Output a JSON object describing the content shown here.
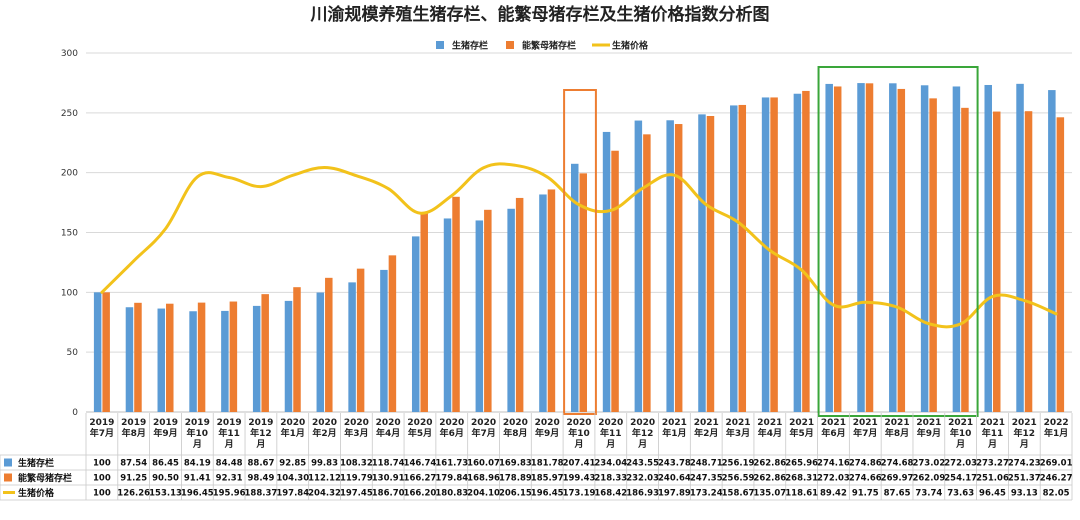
{
  "chart_data": {
    "type": "bar",
    "title": "川渝规模养殖生猪存栏、能繁母猪存栏及生猪价格指数分析图",
    "ylim": [
      0,
      300
    ],
    "yticks": [
      0,
      50,
      100,
      150,
      200,
      250,
      300
    ],
    "grid": true,
    "legend_position": "top",
    "categories": [
      "2019年7月",
      "2019年8月",
      "2019年9月",
      "2019年10月",
      "2019年11月",
      "2019年12月",
      "2020年1月",
      "2020年2月",
      "2020年3月",
      "2020年4月",
      "2020年5月",
      "2020年6月",
      "2020年7月",
      "2020年8月",
      "2020年9月",
      "2020年10月",
      "2020年11月",
      "2020年12月",
      "2021年1月",
      "2021年2月",
      "2021年3月",
      "2021年4月",
      "2021年5月",
      "2021年6月",
      "2021年7月",
      "2021年8月",
      "2021年9月",
      "2021年10月",
      "2021年11月",
      "2021年12月",
      "2022年1月"
    ],
    "series": [
      {
        "name": "生猪存栏",
        "type": "bar",
        "color": "#5b9bd5",
        "values": [
          100,
          87.54,
          86.45,
          84.19,
          84.48,
          88.67,
          92.85,
          99.83,
          108.32,
          118.74,
          146.74,
          161.73,
          160.07,
          169.83,
          181.78,
          207.41,
          234.04,
          243.55,
          243.78,
          248.71,
          256.19,
          262.86,
          265.96,
          274.16,
          274.86,
          274.68,
          273.02,
          272.03,
          273.27,
          274.23,
          269.01
        ]
      },
      {
        "name": "能繁母猪存栏",
        "type": "bar",
        "color": "#ed7d31",
        "values": [
          100,
          91.25,
          90.5,
          91.41,
          92.31,
          98.49,
          104.3,
          112.12,
          119.79,
          130.91,
          166.27,
          179.84,
          168.96,
          178.89,
          185.97,
          199.43,
          218.33,
          232.03,
          240.64,
          247.35,
          256.59,
          262.86,
          268.31,
          272.03,
          274.66,
          269.97,
          262.09,
          254.17,
          251.06,
          251.37,
          246.27
        ]
      },
      {
        "name": "生猪价格",
        "type": "line",
        "color": "#f2c21b",
        "values": [
          100,
          126.26,
          153.13,
          196.45,
          195.96,
          188.37,
          197.84,
          204.32,
          197.45,
          186.7,
          166.2,
          180.83,
          204.1,
          206.15,
          196.45,
          173.19,
          168.42,
          186.93,
          197.89,
          173.24,
          158.67,
          135.07,
          118.61,
          89.42,
          91.75,
          87.65,
          73.74,
          73.63,
          96.45,
          93.13,
          82.05
        ]
      }
    ],
    "table_values": {
      "生猪存栏": [
        "100",
        "87.54",
        "86.45",
        "84.19",
        "84.48",
        "88.67",
        "92.85",
        "99.83",
        "108.32",
        "118.74",
        "146.74",
        "161.73",
        "160.07",
        "169.83",
        "181.78",
        "207.41",
        "234.04",
        "243.55",
        "243.78",
        "248.71",
        "256.19",
        "262.86",
        "265.96",
        "274.16",
        "274.86",
        "274.68",
        "273.02",
        "272.03",
        "273.27",
        "274.23",
        "269.01"
      ],
      "能繁母猪存栏": [
        "100",
        "91.25",
        "90.50",
        "91.41",
        "92.31",
        "98.49",
        "104.30",
        "112.12",
        "119.79",
        "130.91",
        "166.27",
        "179.84",
        "168.96",
        "178.89",
        "185.97",
        "199.43",
        "218.33",
        "232.03",
        "240.64",
        "247.35",
        "256.59",
        "262.86",
        "268.31",
        "272.03",
        "274.66",
        "269.97",
        "262.09",
        "254.17",
        "251.06",
        "251.37",
        "246.27"
      ],
      "生猪价格": [
        "100",
        "126.26",
        "153.13",
        "196.45",
        "195.96",
        "188.37",
        "197.84",
        "204.32",
        "197.45",
        "186.70",
        "166.20",
        "180.83",
        "204.10",
        "206.15",
        "196.45",
        "173.19",
        "168.42",
        "186.93",
        "197.89",
        "173.24",
        "158.67",
        "135.07",
        "118.61",
        "89.42",
        "91.75",
        "87.65",
        "73.74",
        "73.63",
        "96.45",
        "93.13",
        "82.05"
      ]
    },
    "annotations": [
      {
        "shape": "rectangle",
        "color": "#ed7d31",
        "categories": [
          "2020年10月"
        ]
      },
      {
        "shape": "rectangle",
        "color": "#3aa63a",
        "categories": [
          "2021年6月",
          "2021年10月"
        ]
      }
    ]
  }
}
